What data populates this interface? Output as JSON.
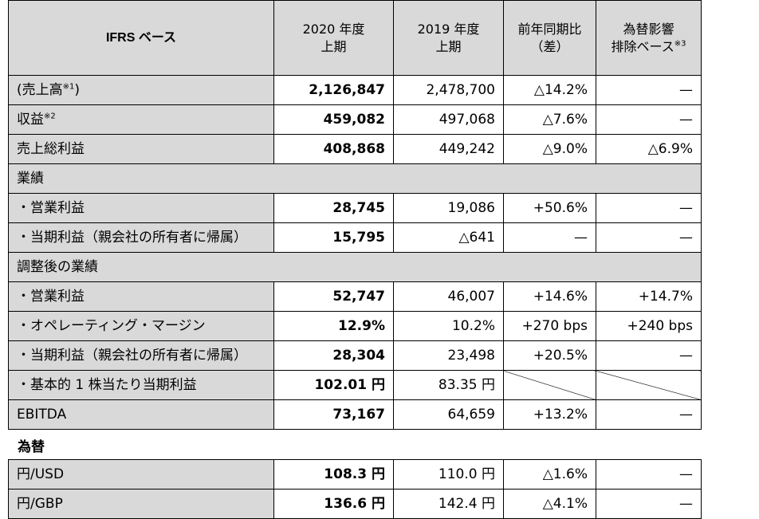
{
  "header": {
    "col0": "IFRS ベース",
    "col1_l1": "2020 年度",
    "col1_l2": "上期",
    "col2_l1": "2019 年度",
    "col2_l2": "上期",
    "col3_l1": "前年同期比",
    "col3_l2": "（差）",
    "col4_l1": "為替影響",
    "col4_l2": "排除ベース",
    "col4_note": "※3"
  },
  "rows": {
    "sales": {
      "label": "(売上高",
      "note": "※1",
      "suffix": ")",
      "v2020": "2,126,847",
      "v2019": "2,478,700",
      "yoy": "△14.2%",
      "fx": "—"
    },
    "revenue": {
      "label": "収益",
      "note": "※2",
      "v2020": "459,082",
      "v2019": "497,068",
      "yoy": "△7.6%",
      "fx": "—"
    },
    "gross_profit": {
      "label": "売上総利益",
      "v2020": "408,868",
      "v2019": "449,242",
      "yoy": "△9.0%",
      "fx": "△6.9%"
    },
    "section_results": "業績",
    "op_income": {
      "label": "・営業利益",
      "v2020": "28,745",
      "v2019": "19,086",
      "yoy": "+50.6%",
      "fx": "—"
    },
    "net_income": {
      "label": "・当期利益（親会社の所有者に帰属）",
      "v2020": "15,795",
      "v2019": "△641",
      "yoy": "—",
      "fx": "—"
    },
    "section_adjusted": "調整後の業績",
    "adj_op_income": {
      "label": "・営業利益",
      "v2020": "52,747",
      "v2019": "46,007",
      "yoy": "+14.6%",
      "fx": "+14.7%"
    },
    "adj_op_margin": {
      "label": "・オペレーティング・マージン",
      "v2020": "12.9%",
      "v2019": "10.2%",
      "yoy": "+270 bps",
      "fx": "+240 bps"
    },
    "adj_net_income": {
      "label": "・当期利益（親会社の所有者に帰属）",
      "v2020": "28,304",
      "v2019": "23,498",
      "yoy": "+20.5%",
      "fx": "—"
    },
    "adj_eps": {
      "label": "・基本的 1 株当たり当期利益",
      "v2020": "102.01 円",
      "v2019": "83.35 円"
    },
    "ebitda": {
      "label": "EBITDA",
      "v2020": "73,167",
      "v2019": "64,659",
      "yoy": "+13.2%",
      "fx": "—"
    }
  },
  "fx_section": {
    "title": "為替",
    "usd": {
      "label": "円/USD",
      "v2020": "108.3 円",
      "v2019": "110.0 円",
      "yoy": "△1.6%",
      "fx": "—"
    },
    "gbp": {
      "label": "円/GBP",
      "v2020": "136.6 円",
      "v2019": "142.4 円",
      "yoy": "△4.1%",
      "fx": "—"
    }
  }
}
